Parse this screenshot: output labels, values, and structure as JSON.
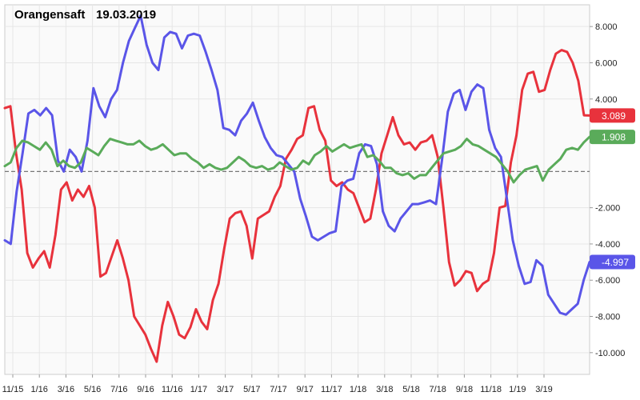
{
  "chart_data": {
    "type": "line",
    "title": "Orangensaft",
    "date": "19.03.2019",
    "x_labels": [
      "11/15",
      "1/16",
      "3/16",
      "5/16",
      "7/16",
      "9/16",
      "11/16",
      "1/17",
      "3/17",
      "5/17",
      "7/17",
      "9/17",
      "11/17",
      "1/18",
      "3/18",
      "5/18",
      "7/18",
      "9/18",
      "11/18",
      "1/19",
      "3/19"
    ],
    "ylim": [
      -11.2,
      9.2
    ],
    "y_ticks": [
      8,
      6,
      4,
      -2,
      -4,
      -6,
      -8,
      -10
    ],
    "y_tick_labels": [
      "8.000",
      "6.000",
      "4.000",
      "-2.000",
      "-4.000",
      "-6.000",
      "-8.000",
      "-10.000"
    ],
    "reference_line": 0,
    "colors": {
      "red": "#e8323c",
      "blue": "#5a55e8",
      "green": "#5aab5a",
      "grid": "#e6e6e6",
      "zero": "#777777"
    },
    "series": [
      {
        "name": "red",
        "color": "#e8323c",
        "last_label": "3.089",
        "values": [
          3.5,
          3.6,
          1,
          -1,
          -4.5,
          -5.3,
          -4.8,
          -4.4,
          -5.3,
          -3.5,
          -1,
          -0.6,
          -1.6,
          -1,
          -1.4,
          -0.8,
          -2,
          -5.8,
          -5.6,
          -4.7,
          -3.8,
          -4.8,
          -6,
          -8,
          -8.5,
          -9,
          -9.8,
          -10.5,
          -8.5,
          -7.2,
          -8,
          -9,
          -9.2,
          -8.6,
          -7.6,
          -8.3,
          -8.7,
          -7.1,
          -6.2,
          -4.3,
          -2.6,
          -2.3,
          -2.2,
          -3,
          -4.8,
          -2.6,
          -2.4,
          -2.2,
          -1.4,
          -0.8,
          0.7,
          1.2,
          1.8,
          2,
          3.5,
          3.6,
          2.3,
          1.7,
          -0.5,
          -0.8,
          -0.6,
          -1,
          -1.2,
          -2,
          -2.8,
          -2.6,
          -1,
          1,
          2,
          3,
          2,
          1.5,
          1.6,
          1.2,
          1.6,
          1.7,
          2,
          0.8,
          -2,
          -5,
          -6.3,
          -6,
          -5.5,
          -5.6,
          -6.6,
          -6.2,
          -6,
          -4.5,
          -2,
          -1.9,
          0.5,
          2,
          4.5,
          5.4,
          5.5,
          4.4,
          4.5,
          5.6,
          6.5,
          6.7,
          6.6,
          6,
          5,
          3.1,
          3.089
        ]
      },
      {
        "name": "blue",
        "color": "#5a55e8",
        "last_label": "-4.997",
        "values": [
          -3.8,
          -4,
          -1.1,
          1,
          3.2,
          3.4,
          3.1,
          3.5,
          3.1,
          0.6,
          0,
          1.2,
          0.8,
          0,
          1.7,
          4.6,
          3.6,
          3,
          4,
          4.5,
          6,
          7.2,
          7.9,
          8.6,
          7,
          6,
          5.6,
          7.4,
          7.7,
          7.6,
          6.8,
          7.5,
          7.6,
          7.5,
          6.6,
          5.6,
          4.5,
          2.4,
          2.3,
          2,
          2.8,
          3.2,
          3.8,
          2.8,
          1.9,
          1.3,
          0.9,
          0.8,
          0.4,
          0,
          -1.5,
          -2.5,
          -3.6,
          -3.8,
          -3.6,
          -3.4,
          -3.3,
          -0.8,
          -0.5,
          -0.4,
          1,
          1.5,
          1.4,
          0.4,
          -2.2,
          -3,
          -3.3,
          -2.6,
          -2.2,
          -1.8,
          -1.8,
          -1.7,
          -1.6,
          -1.8,
          0.6,
          3.3,
          4.3,
          4.5,
          3.4,
          4.4,
          4.8,
          4.6,
          2.3,
          1.3,
          0.8,
          -1.5,
          -3.8,
          -5.2,
          -6.2,
          -6.1,
          -4.9,
          -5.2,
          -6.8,
          -7.3,
          -7.8,
          -7.9,
          -7.6,
          -7.3,
          -6,
          -4.997
        ]
      },
      {
        "name": "green",
        "color": "#5aab5a",
        "last_label": "1.908",
        "values": [
          0.3,
          0.5,
          1.3,
          1.7,
          1.6,
          1.4,
          1.2,
          1.6,
          1.2,
          0.3,
          0.6,
          0.3,
          0.2,
          0.5,
          1.3,
          1.1,
          0.9,
          1.4,
          1.8,
          1.7,
          1.6,
          1.5,
          1.5,
          1.7,
          1.4,
          1.2,
          1.3,
          1.5,
          1.2,
          0.9,
          1,
          1,
          0.7,
          0.5,
          0.2,
          0.4,
          0.2,
          0.1,
          0.2,
          0.5,
          0.8,
          0.6,
          0.3,
          0.2,
          0.3,
          0.1,
          0.2,
          0.5,
          0.3,
          0.1,
          0.2,
          0.6,
          0.4,
          0.9,
          1.1,
          1.4,
          1.1,
          1.3,
          1.5,
          1.3,
          1.4,
          1.5,
          0.8,
          0.9,
          0.6,
          0.2,
          0.2,
          -0.1,
          -0.2,
          -0.1,
          -0.4,
          -0.2,
          -0.2,
          0.2,
          0.6,
          1,
          1.1,
          1.2,
          1.4,
          1.8,
          1.5,
          1.4,
          1.2,
          1,
          0.8,
          0.4,
          0,
          -0.6,
          -0.2,
          0.1,
          0.2,
          0.3,
          -0.5,
          0.1,
          0.4,
          0.7,
          1.2,
          1.3,
          1.2,
          1.6,
          1.908
        ]
      }
    ]
  }
}
